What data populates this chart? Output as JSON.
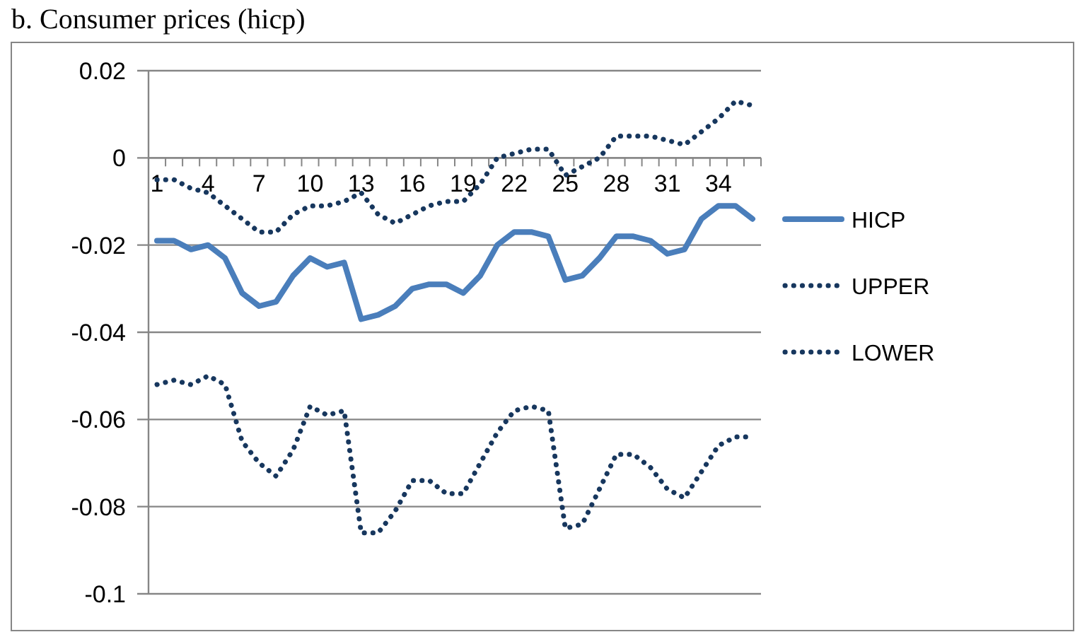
{
  "chart_data": {
    "type": "line",
    "title": "b. Consumer prices (hicp)",
    "categories": [
      "1",
      null,
      null,
      "4",
      null,
      null,
      "7",
      null,
      null,
      "10",
      null,
      null,
      "13",
      null,
      null,
      "16",
      null,
      null,
      "19",
      null,
      null,
      "22",
      null,
      null,
      "25",
      null,
      null,
      "28",
      null,
      null,
      "31",
      null,
      null,
      "34",
      null,
      null
    ],
    "series": [
      {
        "name": "HICP",
        "color": "#4a7ebb",
        "line_style": "solid",
        "values": [
          -0.019,
          -0.019,
          -0.021,
          -0.02,
          -0.023,
          -0.031,
          -0.034,
          -0.033,
          -0.027,
          -0.023,
          -0.025,
          -0.024,
          -0.037,
          -0.036,
          -0.034,
          -0.03,
          -0.029,
          -0.029,
          -0.031,
          -0.027,
          -0.02,
          -0.017,
          -0.017,
          -0.018,
          -0.028,
          -0.027,
          -0.023,
          -0.018,
          -0.018,
          -0.019,
          -0.022,
          -0.021,
          -0.014,
          -0.011,
          -0.011,
          -0.014
        ]
      },
      {
        "name": "UPPER",
        "color": "#17375e",
        "line_style": "dotted",
        "values": [
          -0.005,
          -0.005,
          -0.007,
          -0.008,
          -0.011,
          -0.014,
          -0.017,
          -0.017,
          -0.013,
          -0.011,
          -0.011,
          -0.01,
          -0.008,
          -0.013,
          -0.015,
          -0.013,
          -0.011,
          -0.01,
          -0.01,
          -0.006,
          0,
          0.001,
          0.002,
          0.002,
          -0.004,
          -0.002,
          0,
          0.005,
          0.005,
          0.005,
          0.004,
          0.003,
          0.006,
          0.009,
          0.013,
          0.012
        ]
      },
      {
        "name": "LOWER",
        "color": "#17375e",
        "line_style": "dotted",
        "values": [
          -0.052,
          -0.051,
          -0.052,
          -0.05,
          -0.052,
          -0.065,
          -0.07,
          -0.073,
          -0.067,
          -0.057,
          -0.059,
          -0.058,
          -0.086,
          -0.086,
          -0.081,
          -0.074,
          -0.074,
          -0.077,
          -0.077,
          -0.07,
          -0.063,
          -0.058,
          -0.057,
          -0.058,
          -0.085,
          -0.084,
          -0.076,
          -0.068,
          -0.068,
          -0.071,
          -0.076,
          -0.078,
          -0.072,
          -0.066,
          -0.064,
          -0.064
        ]
      }
    ],
    "ylim": [
      -0.1,
      0.02
    ],
    "yticks": [
      {
        "value": 0.02,
        "label": "0.02"
      },
      0,
      {
        "value": -0.02,
        "label": "-0.02"
      },
      {
        "value": -0.04,
        "label": "-0.04"
      },
      {
        "value": -0.06,
        "label": "-0.06"
      },
      {
        "value": -0.08,
        "label": "-0.08"
      },
      {
        "value": -0.1,
        "label": "-0.1"
      }
    ],
    "grid": "y",
    "legend": "right",
    "marker": "none"
  }
}
